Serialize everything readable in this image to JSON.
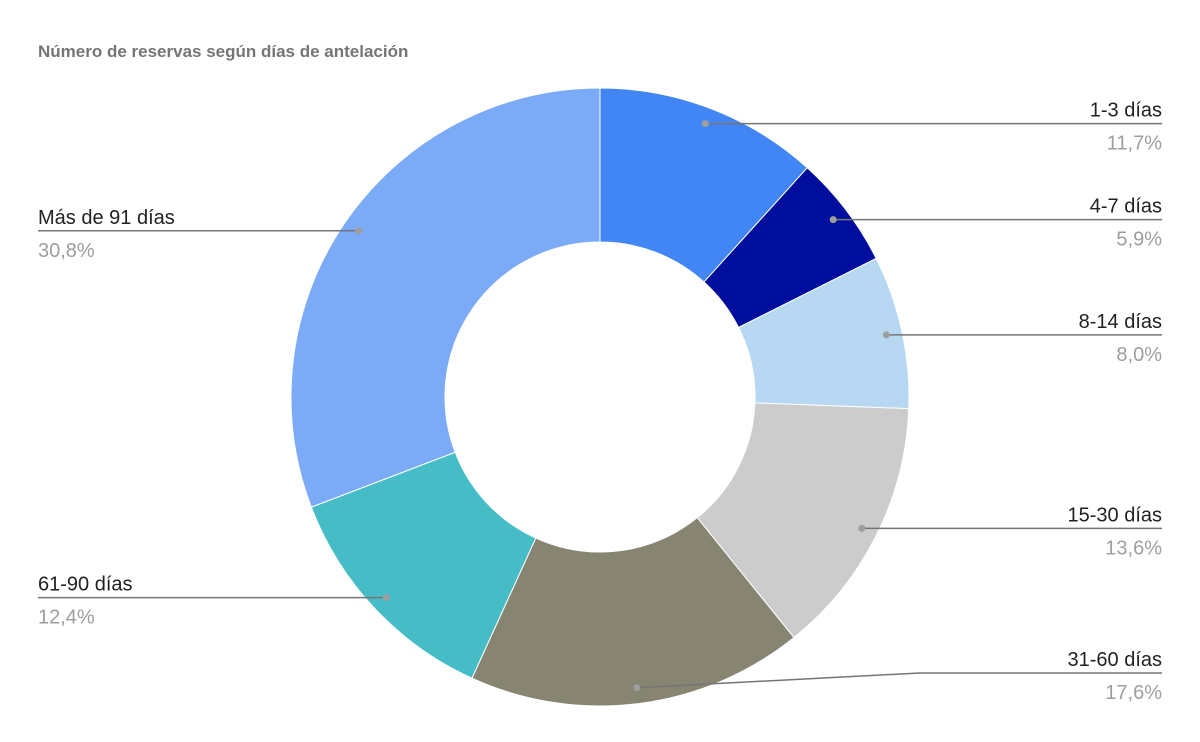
{
  "chart_data": {
    "type": "donut",
    "title": "Número de reservas según días de antelación",
    "categories": [
      "1-3 días",
      "4-7 días",
      "8-14 días",
      "15-30 días",
      "31-60 días",
      "61-90 días",
      "Más de 91 días"
    ],
    "values": [
      11.7,
      5.9,
      8.0,
      13.6,
      17.6,
      12.4,
      30.8
    ],
    "value_labels": [
      "11,7%",
      "5,9%",
      "8,0%",
      "13,6%",
      "17,6%",
      "12,4%",
      "30,8%"
    ],
    "colors": [
      "#4285f4",
      "#000e9e",
      "#b7d7f3",
      "#cccccc",
      "#878472",
      "#46bdc6",
      "#7baaf7"
    ]
  }
}
